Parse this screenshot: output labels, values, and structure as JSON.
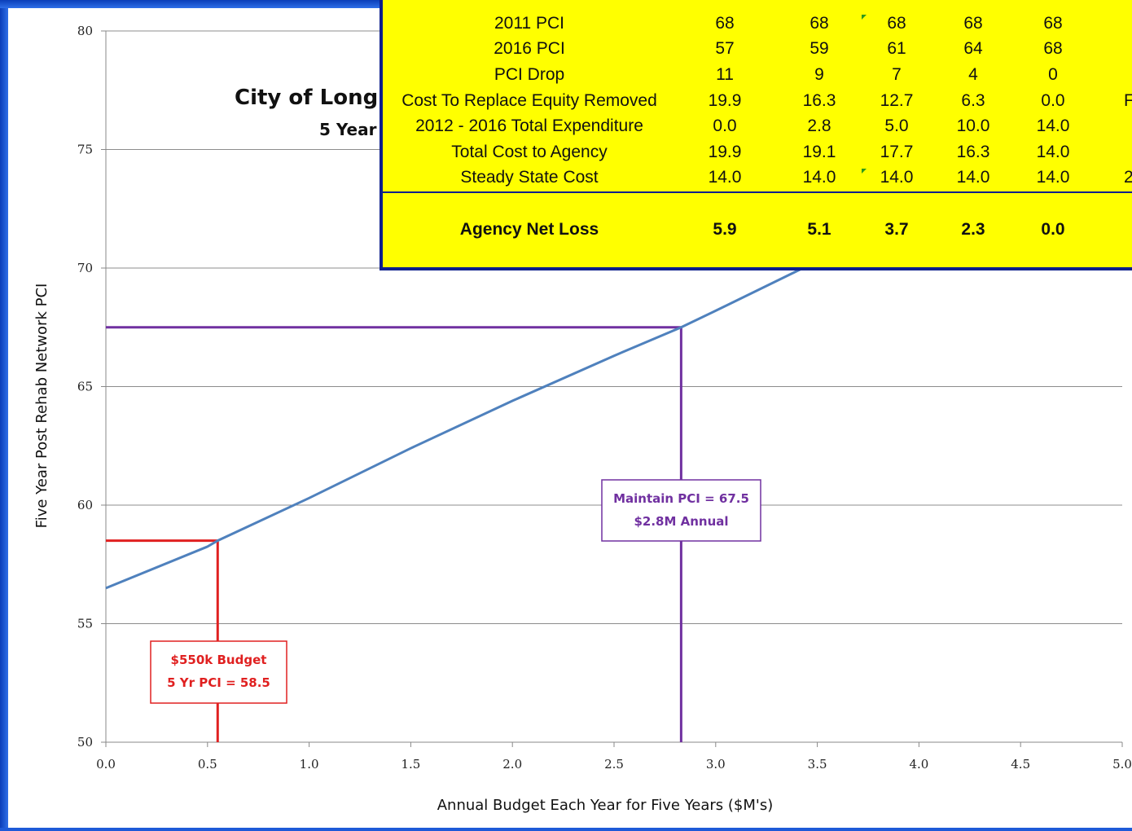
{
  "chart_data": {
    "type": "line",
    "title": "City of Long",
    "subtitle": "5 Year",
    "xlabel": "Annual Budget Each Year for Five Years ($M's)",
    "ylabel": "Five Year Post Rehab Network PCI",
    "xlim": [
      0,
      5
    ],
    "ylim": [
      50,
      80
    ],
    "x_ticks": [
      "0.0",
      "0.5",
      "1.0",
      "1.5",
      "2.0",
      "2.5",
      "3.0",
      "3.5",
      "4.0",
      "4.5",
      "5.0"
    ],
    "y_ticks": [
      "50",
      "55",
      "60",
      "65",
      "70",
      "75",
      "80"
    ],
    "grid": true,
    "line_color": "#4f81bd",
    "series": [
      {
        "x": [
          0.0,
          0.5,
          0.55,
          1.0,
          1.5,
          2.0,
          2.5,
          2.83,
          3.0,
          3.43
        ],
        "y": [
          56.5,
          58.25,
          58.5,
          60.3,
          62.4,
          64.4,
          66.3,
          67.5,
          68.2,
          70.0
        ]
      }
    ],
    "annotations": [
      {
        "x": 0.55,
        "y": 58.5,
        "color": "#e02020",
        "lines": [
          "$550k Budget",
          "5 Yr PCI = 58.5"
        ]
      },
      {
        "x": 2.83,
        "y": 67.5,
        "color": "#7030a0",
        "lines": [
          "Maintain PCI = 67.5",
          "$2.8M Annual"
        ]
      }
    ]
  },
  "table": {
    "background": "#ffff00",
    "border_color": "#0d1f8c",
    "rows": [
      {
        "label": "2011 PCI",
        "values": [
          "68",
          "68",
          "68",
          "68",
          "68"
        ],
        "extra": ""
      },
      {
        "label": "2016 PCI",
        "values": [
          "57",
          "59",
          "61",
          "64",
          "68"
        ],
        "extra": ""
      },
      {
        "label": "PCI Drop",
        "values": [
          "11",
          "9",
          "7",
          "4",
          "0"
        ],
        "extra": ""
      },
      {
        "label": "Cost To Replace Equity Removed",
        "values": [
          "19.9",
          "16.3",
          "12.7",
          "6.3",
          "0.0"
        ],
        "extra": "F"
      },
      {
        "label": "2012 - 2016 Total Expenditure",
        "values": [
          "0.0",
          "2.8",
          "5.0",
          "10.0",
          "14.0"
        ],
        "extra": ""
      },
      {
        "label": "Total Cost to Agency",
        "values": [
          "19.9",
          "19.1",
          "17.7",
          "16.3",
          "14.0"
        ],
        "extra": ""
      },
      {
        "label": "Steady State Cost",
        "values": [
          "14.0",
          "14.0",
          "14.0",
          "14.0",
          "14.0"
        ],
        "extra": "2"
      }
    ],
    "total_row": {
      "label": "Agency Net Loss",
      "values": [
        "5.9",
        "5.1",
        "3.7",
        "2.3",
        "0.0"
      ]
    }
  }
}
